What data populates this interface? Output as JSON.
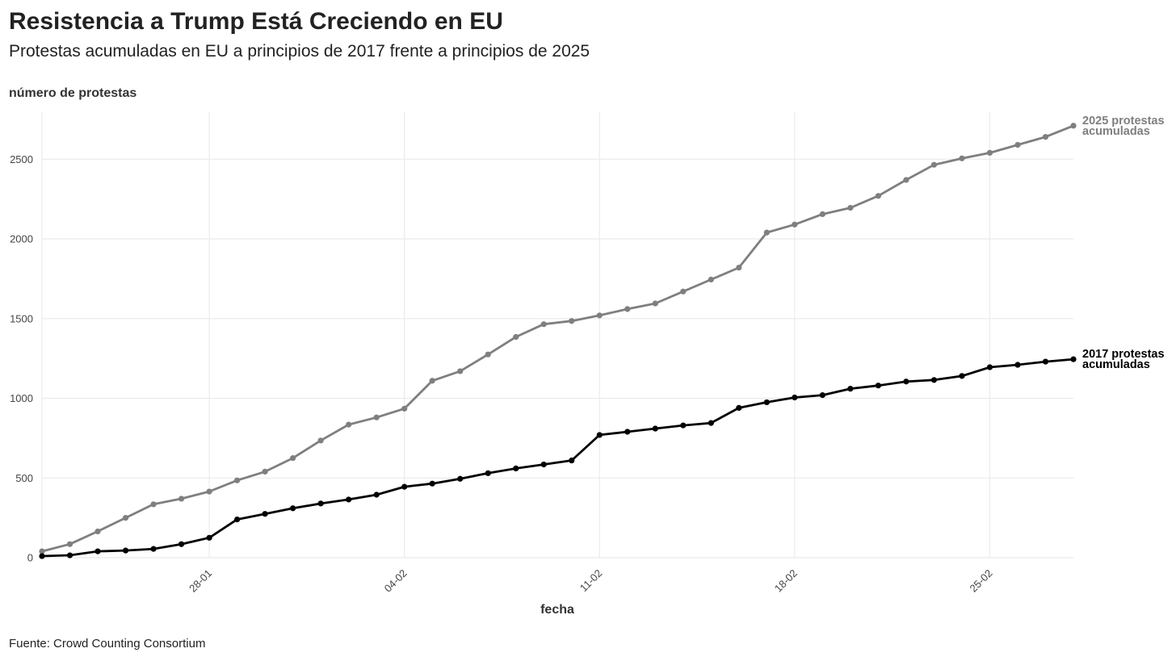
{
  "title": "Resistencia a Trump Está Creciendo en EU",
  "subtitle": "Protestas acumuladas en EU a principios de 2017 frente a principios de 2025",
  "source": "Fuente: Crowd Counting Consortium",
  "chart_data": {
    "type": "line",
    "title": "Resistencia a Trump Está Creciendo en EU",
    "xlabel": "fecha",
    "ylabel": "número de protestas",
    "ylim": [
      0,
      2800
    ],
    "yticks": [
      0,
      500,
      1000,
      1500,
      2000,
      2500
    ],
    "x_day_range": [
      22,
      59
    ],
    "xticks": [
      {
        "day": 28,
        "label": "28-01"
      },
      {
        "day": 35,
        "label": "04-02"
      },
      {
        "day": 42,
        "label": "11-02"
      },
      {
        "day": 49,
        "label": "18-02"
      },
      {
        "day": 56,
        "label": "25-02"
      }
    ],
    "grid": true,
    "legend": "direct labels at right end of lines",
    "series": [
      {
        "name": "2025 protestas acumuladas",
        "label_lines": [
          "2025 protestas",
          "acumuladas"
        ],
        "color": "#7f7f7f",
        "start_day": 22,
        "values": [
          40,
          85,
          165,
          250,
          335,
          370,
          415,
          485,
          540,
          625,
          735,
          835,
          880,
          935,
          1110,
          1170,
          1275,
          1385,
          1465,
          1485,
          1520,
          1560,
          1595,
          1670,
          1745,
          1820,
          2040,
          2090,
          2155,
          2195,
          2270,
          2370,
          2465,
          2505,
          2540,
          2590,
          2640,
          2710
        ]
      },
      {
        "name": "2017 protestas acumuladas",
        "label_lines": [
          "2017 protestas",
          "acumuladas"
        ],
        "color": "#000000",
        "start_day": 22,
        "values": [
          10,
          15,
          40,
          45,
          55,
          85,
          125,
          240,
          275,
          310,
          340,
          365,
          395,
          445,
          465,
          495,
          530,
          560,
          585,
          610,
          770,
          790,
          810,
          830,
          845,
          940,
          975,
          1005,
          1020,
          1060,
          1080,
          1105,
          1115,
          1140,
          1195,
          1210,
          1230,
          1245
        ]
      }
    ]
  }
}
